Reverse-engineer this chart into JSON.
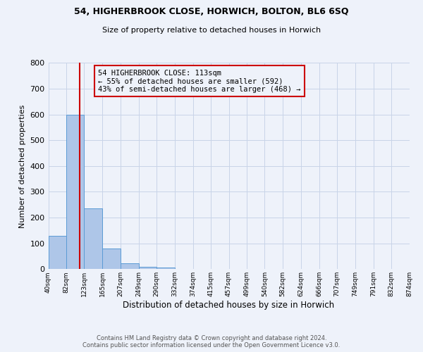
{
  "title1": "54, HIGHERBROOK CLOSE, HORWICH, BOLTON, BL6 6SQ",
  "title2": "Size of property relative to detached houses in Horwich",
  "xlabel": "Distribution of detached houses by size in Horwich",
  "ylabel": "Number of detached properties",
  "bin_edges": [
    40,
    82,
    123,
    165,
    207,
    249,
    290,
    332,
    374,
    415,
    457,
    499,
    540,
    582,
    624,
    666,
    707,
    749,
    791,
    832,
    874
  ],
  "bin_labels": [
    "40sqm",
    "82sqm",
    "123sqm",
    "165sqm",
    "207sqm",
    "249sqm",
    "290sqm",
    "332sqm",
    "374sqm",
    "415sqm",
    "457sqm",
    "499sqm",
    "540sqm",
    "582sqm",
    "624sqm",
    "666sqm",
    "707sqm",
    "749sqm",
    "791sqm",
    "832sqm",
    "874sqm"
  ],
  "bar_heights": [
    130,
    600,
    235,
    80,
    22,
    10,
    5,
    0,
    0,
    0,
    0,
    0,
    0,
    0,
    0,
    0,
    0,
    0,
    0,
    0
  ],
  "bar_color": "#aec6e8",
  "bar_edge_color": "#5b9bd5",
  "vline_x": 113,
  "vline_color": "#cc0000",
  "ylim": [
    0,
    800
  ],
  "yticks": [
    0,
    100,
    200,
    300,
    400,
    500,
    600,
    700,
    800
  ],
  "annotation_title": "54 HIGHERBROOK CLOSE: 113sqm",
  "annotation_line1": "← 55% of detached houses are smaller (592)",
  "annotation_line2": "43% of semi-detached houses are larger (468) →",
  "annotation_box_color": "#cc0000",
  "footer1": "Contains HM Land Registry data © Crown copyright and database right 2024.",
  "footer2": "Contains public sector information licensed under the Open Government Licence v3.0.",
  "background_color": "#eef2fa",
  "grid_color": "#c8d4e8"
}
